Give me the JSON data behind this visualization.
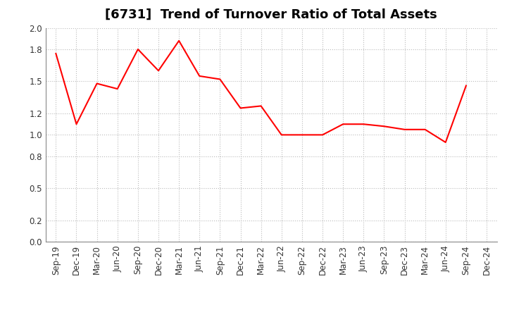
{
  "title": "[6731]  Trend of Turnover Ratio of Total Assets",
  "line_color": "#FF0000",
  "background_color": "#FFFFFF",
  "grid_color": "#BBBBBB",
  "ylim": [
    0.0,
    2.0
  ],
  "yticks": [
    0.0,
    0.2,
    0.5,
    0.8,
    1.0,
    1.2,
    1.5,
    1.8,
    2.0
  ],
  "labels": [
    "Sep-19",
    "Dec-19",
    "Mar-20",
    "Jun-20",
    "Sep-20",
    "Dec-20",
    "Mar-21",
    "Jun-21",
    "Sep-21",
    "Dec-21",
    "Mar-22",
    "Jun-22",
    "Sep-22",
    "Dec-22",
    "Mar-23",
    "Jun-23",
    "Sep-23",
    "Dec-23",
    "Mar-24",
    "Jun-24",
    "Sep-24",
    "Dec-24"
  ],
  "values": [
    1.76,
    1.1,
    1.48,
    1.43,
    1.8,
    1.6,
    1.88,
    1.55,
    1.52,
    1.25,
    1.27,
    1.0,
    1.0,
    1.0,
    1.1,
    1.1,
    1.08,
    1.05,
    1.05,
    0.93,
    1.46,
    null
  ],
  "title_fontsize": 13,
  "tick_fontsize": 8.5
}
